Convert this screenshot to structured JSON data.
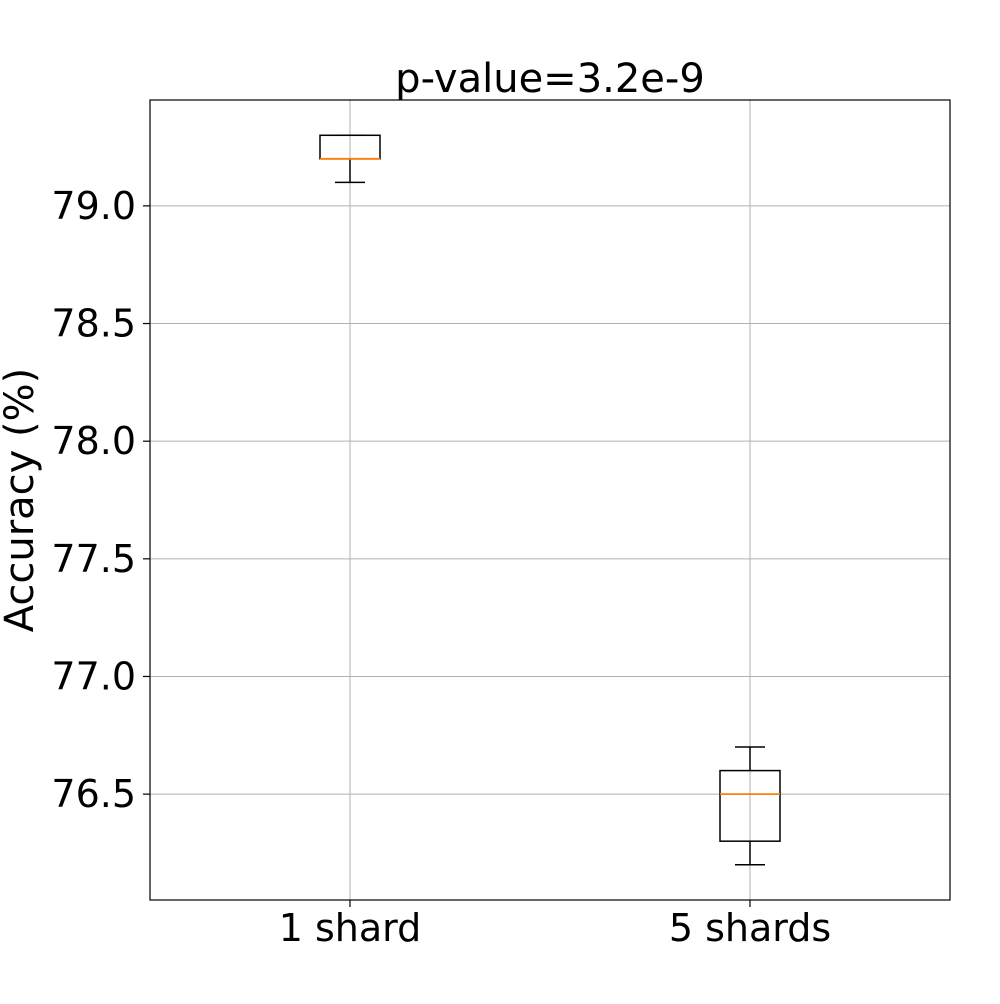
{
  "chart_data": {
    "type": "boxplot",
    "title": "p-value=3.2e-9",
    "xlabel": "",
    "ylabel": "Accuracy (%)",
    "ylim": [
      76.05,
      79.45
    ],
    "yticks": [
      76.5,
      77.0,
      77.5,
      78.0,
      78.5,
      79.0
    ],
    "ytick_labels": [
      "76.5",
      "77.0",
      "77.5",
      "78.0",
      "78.5",
      "79.0"
    ],
    "grid": true,
    "categories": [
      "1 shard",
      "5 shards"
    ],
    "boxes": [
      {
        "category": "1 shard",
        "whisker_low": 79.1,
        "q1": 79.2,
        "median": 79.2,
        "q3": 79.3,
        "whisker_high": 79.3
      },
      {
        "category": "5 shards",
        "whisker_low": 76.2,
        "q1": 76.3,
        "median": 76.5,
        "q3": 76.6,
        "whisker_high": 76.7
      }
    ],
    "colors": {
      "box": "#000000",
      "median": "#ff7f0e",
      "grid": "#b0b0b0",
      "frame": "#000000"
    }
  }
}
